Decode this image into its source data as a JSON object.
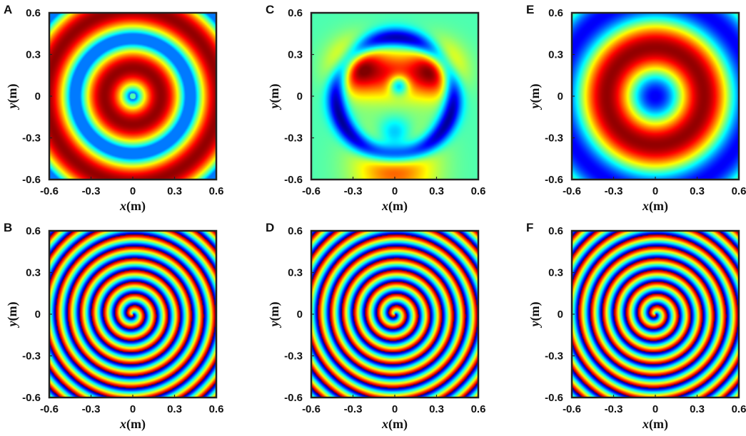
{
  "chart_data": [
    {
      "panel": "A",
      "type": "heatmap",
      "pattern": "amplitude-rings-centered",
      "xlabel_var": "x",
      "xlabel_unit": "(m)",
      "ylabel_var": "y",
      "ylabel_unit": "(m)",
      "xlim": [
        -0.6,
        0.6
      ],
      "ylim": [
        -0.6,
        0.6
      ],
      "xticks": [
        "-0.6",
        "-0.3",
        "0",
        "0.3",
        "0.6"
      ],
      "yticks": [
        "0.6",
        "0.3",
        "0",
        "-0.3",
        "-0.6"
      ],
      "colormap": "jet"
    },
    {
      "panel": "B",
      "type": "heatmap",
      "pattern": "phase-spiral",
      "xlabel_var": "x",
      "xlabel_unit": "(m)",
      "ylabel_var": "y",
      "ylabel_unit": "(m)",
      "xlim": [
        -0.6,
        0.6
      ],
      "ylim": [
        -0.6,
        0.6
      ],
      "xticks": [
        "-0.6",
        "-0.3",
        "0",
        "0.3",
        "0.6"
      ],
      "yticks": [
        "0.6",
        "0.3",
        "0",
        "-0.3",
        "-0.6"
      ],
      "colormap": "jet"
    },
    {
      "panel": "C",
      "type": "heatmap",
      "pattern": "amplitude-asymmetric-lobes",
      "xlabel_var": "x",
      "xlabel_unit": "(m)",
      "ylabel_var": "y",
      "ylabel_unit": "(m)",
      "xlim": [
        -0.6,
        0.6
      ],
      "ylim": [
        -0.6,
        0.6
      ],
      "xticks": [
        "-0.6",
        "-0.3",
        "0",
        "0.3",
        "0.6"
      ],
      "yticks": [
        "0.6",
        "0.3",
        "0",
        "-0.3",
        "-0.6"
      ],
      "colormap": "jet"
    },
    {
      "panel": "D",
      "type": "heatmap",
      "pattern": "phase-spiral",
      "xlabel_var": "x",
      "xlabel_unit": "(m)",
      "ylabel_var": "y",
      "ylabel_unit": "(m)",
      "xlim": [
        -0.6,
        0.6
      ],
      "ylim": [
        -0.6,
        0.6
      ],
      "xticks": [
        "-0.6",
        "-0.3",
        "0",
        "0.3",
        "0.6"
      ],
      "yticks": [
        "0.6",
        "0.3",
        "0",
        "-0.3",
        "-0.6"
      ],
      "colormap": "jet"
    },
    {
      "panel": "E",
      "type": "heatmap",
      "pattern": "amplitude-single-ring",
      "xlabel_var": "x",
      "xlabel_unit": "(m)",
      "ylabel_var": "y",
      "ylabel_unit": "(m)",
      "xlim": [
        -0.6,
        0.6
      ],
      "ylim": [
        -0.6,
        0.6
      ],
      "xticks": [
        "-0.6",
        "-0.3",
        "0",
        "0.3",
        "0.6"
      ],
      "yticks": [
        "0.6",
        "0.3",
        "0",
        "-0.3",
        "-0.6"
      ],
      "colormap": "jet"
    },
    {
      "panel": "F",
      "type": "heatmap",
      "pattern": "phase-spiral",
      "xlabel_var": "x",
      "xlabel_unit": "(m)",
      "ylabel_var": "y",
      "ylabel_unit": "(m)",
      "xlim": [
        -0.6,
        0.6
      ],
      "ylim": [
        -0.6,
        0.6
      ],
      "xticks": [
        "-0.6",
        "-0.3",
        "0",
        "0.3",
        "0.6"
      ],
      "yticks": [
        "0.6",
        "0.3",
        "0",
        "-0.3",
        "-0.6"
      ],
      "colormap": "jet"
    }
  ]
}
